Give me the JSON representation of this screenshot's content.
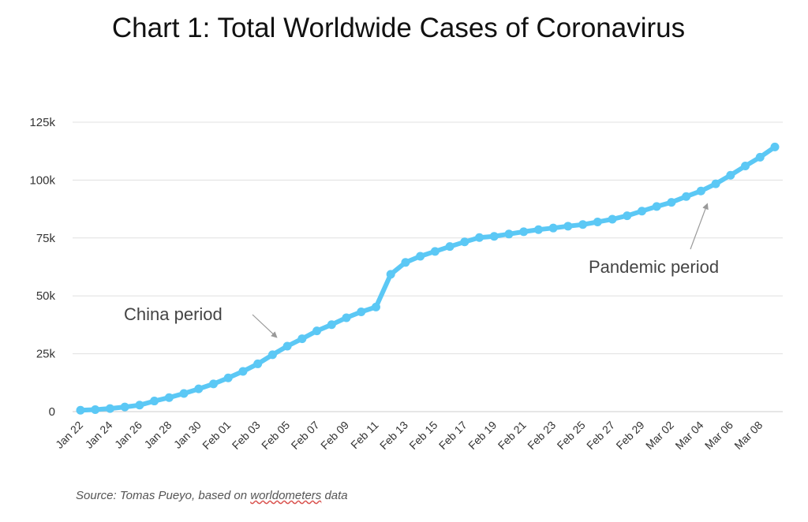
{
  "colors": {
    "line": "#5bc8f5",
    "grid": "#e0e0e0",
    "axis_text": "#333333",
    "annotation_text": "#444444",
    "arrow": "#999999"
  },
  "source": {
    "prefix": "Source: Tomas Pueyo, based on ",
    "underlined": "worldometers",
    "suffix": " data"
  },
  "chart_data": {
    "type": "line",
    "title": "Chart 1: Total Worldwide Cases of Coronavirus",
    "xlabel": "",
    "ylabel": "",
    "ylim": [
      0,
      125000
    ],
    "yticks": [
      0,
      25000,
      50000,
      75000,
      100000,
      125000
    ],
    "ytick_labels": [
      "0",
      "25k",
      "50k",
      "75k",
      "100k",
      "125k"
    ],
    "grid": true,
    "x": [
      "Jan 22",
      "Jan 23",
      "Jan 24",
      "Jan 25",
      "Jan 26",
      "Jan 27",
      "Jan 28",
      "Jan 29",
      "Jan 30",
      "Jan 31",
      "Feb 01",
      "Feb 02",
      "Feb 03",
      "Feb 04",
      "Feb 05",
      "Feb 06",
      "Feb 07",
      "Feb 08",
      "Feb 09",
      "Feb 10",
      "Feb 11",
      "Feb 12",
      "Feb 13",
      "Feb 14",
      "Feb 15",
      "Feb 16",
      "Feb 17",
      "Feb 18",
      "Feb 19",
      "Feb 20",
      "Feb 21",
      "Feb 22",
      "Feb 23",
      "Feb 24",
      "Feb 25",
      "Feb 26",
      "Feb 27",
      "Feb 28",
      "Feb 29",
      "Mar 01",
      "Mar 02",
      "Mar 03",
      "Mar 04",
      "Mar 05",
      "Mar 06",
      "Mar 07",
      "Mar 08",
      "Mar 09"
    ],
    "xtick_labels": [
      "Jan 22",
      "Jan 24",
      "Jan 26",
      "Jan 28",
      "Jan 30",
      "Feb 01",
      "Feb 03",
      "Feb 05",
      "Feb 07",
      "Feb 09",
      "Feb 11",
      "Feb 13",
      "Feb 15",
      "Feb 17",
      "Feb 19",
      "Feb 21",
      "Feb 23",
      "Feb 25",
      "Feb 27",
      "Feb 29",
      "Mar 02",
      "Mar 04",
      "Mar 06",
      "Mar 08"
    ],
    "series": [
      {
        "values": [
          580,
          845,
          1320,
          2010,
          2800,
          4580,
          6060,
          7820,
          9820,
          11950,
          14550,
          17390,
          20630,
          24550,
          28280,
          31480,
          34880,
          37560,
          40550,
          43100,
          45170,
          59300,
          64440,
          67100,
          69200,
          71300,
          73300,
          75200,
          75700,
          76700,
          77700,
          78600,
          79300,
          80100,
          80800,
          81900,
          83100,
          84600,
          86600,
          88600,
          90400,
          92900,
          95300,
          98400,
          102100,
          106100,
          109900,
          114300
        ]
      }
    ],
    "annotations": [
      {
        "text": "China period",
        "x": "Feb 05",
        "y": 36000
      },
      {
        "text": "Pandemic period",
        "x": "Mar 05",
        "y": 90500
      }
    ]
  }
}
